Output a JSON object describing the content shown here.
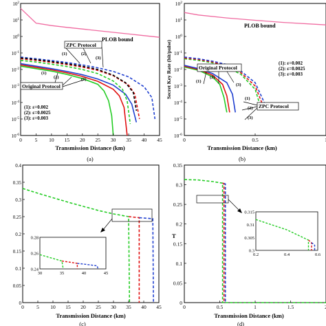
{
  "colors": {
    "plob": "#f06aa0",
    "green": "#22cc22",
    "red": "#e01010",
    "blue": "#1f3fd0",
    "black": "#000000"
  },
  "panels": {
    "a": {
      "caption": "(a)",
      "xlabel": "Transmission Distance (km)",
      "ylabel_partial": "",
      "plob_label": "PLOB bound",
      "zpc_label": "ZPC Protocol",
      "orig_label": "Original Protocol",
      "legend": [
        "(1): ε=0.002",
        "(2): ε=0.0025",
        "(3): ε=0.003"
      ]
    },
    "b": {
      "caption": "(b)",
      "xlabel": "Transmission Distance (km)",
      "ylabel": "Secret Key Rate (bit/pulse)",
      "plob_label": "PLOB bound",
      "zpc_label": "ZPC Protocol",
      "orig_label": "Original Protocol",
      "legend": [
        "(1): ε=0.002",
        "(2): ε=0.0025",
        "(3): ε=0.003"
      ]
    },
    "c": {
      "caption": "(c)",
      "xlabel": "Transmission Distance (km)"
    },
    "d": {
      "caption": "(d)",
      "xlabel": "Transmission Distance (km)",
      "ylabel": "T"
    }
  },
  "chart_data": [
    {
      "id": "a",
      "type": "line",
      "xlabel": "Transmission Distance (km)",
      "xlim": [
        0,
        45
      ],
      "ylim_log10": [
        -6,
        2
      ],
      "yscale": "log",
      "xticks": [
        "0",
        "5",
        "10",
        "15",
        "20",
        "25",
        "30",
        "35",
        "40",
        "45"
      ],
      "yticks": [
        "10^-6",
        "10^-5",
        "10^-4",
        "10^-3",
        "10^-2",
        "10^-1",
        "10^0",
        "10^1",
        "10^2"
      ],
      "series": [
        {
          "name": "PLOB bound",
          "color": "plob",
          "dash": false,
          "x": [
            0,
            5,
            10,
            15,
            20,
            25,
            30,
            35,
            40,
            45
          ],
          "log10y": [
            1.7,
            0.81,
            0.66,
            0.55,
            0.45,
            0.35,
            0.25,
            0.15,
            0.05,
            -0.05
          ]
        },
        {
          "name": "(1)",
          "color": "green",
          "dash": false,
          "x": [
            0,
            5,
            10,
            15,
            20,
            25,
            27,
            28.5,
            29.5,
            30
          ],
          "log10y": [
            -1.8,
            -1.95,
            -2.1,
            -2.3,
            -2.55,
            -2.9,
            -3.3,
            -3.9,
            -4.8,
            -6
          ]
        },
        {
          "name": "(2)",
          "color": "red",
          "dash": false,
          "x": [
            0,
            5,
            10,
            15,
            20,
            25,
            30,
            32,
            33.5,
            34.5
          ],
          "log10y": [
            -1.72,
            -1.87,
            -2.02,
            -2.2,
            -2.42,
            -2.72,
            -3.2,
            -3.6,
            -4.3,
            -6
          ]
        },
        {
          "name": "(3)",
          "color": "blue",
          "dash": false,
          "x": [
            0,
            5,
            10,
            15,
            20,
            25,
            30,
            34,
            36,
            37.5
          ],
          "log10y": [
            -1.65,
            -1.8,
            -1.95,
            -2.12,
            -2.32,
            -2.58,
            -2.95,
            -3.5,
            -4.1,
            -5.2
          ]
        },
        {
          "name": "(1)",
          "color": "green",
          "dash": true,
          "x": [
            0,
            5,
            10,
            15,
            20,
            25,
            30,
            33,
            34.5,
            35.5
          ],
          "log10y": [
            -1.45,
            -1.55,
            -1.68,
            -1.82,
            -2.0,
            -2.25,
            -2.7,
            -3.2,
            -3.9,
            -5.3
          ]
        },
        {
          "name": "(2)",
          "color": "red",
          "dash": true,
          "x": [
            0,
            5,
            10,
            15,
            20,
            25,
            30,
            35,
            37,
            38.5
          ],
          "log10y": [
            -1.35,
            -1.45,
            -1.57,
            -1.7,
            -1.86,
            -2.06,
            -2.38,
            -2.95,
            -3.5,
            -5.0
          ]
        },
        {
          "name": "(3)",
          "color": "blue",
          "dash": true,
          "x": [
            0,
            5,
            10,
            15,
            20,
            25,
            30,
            35,
            40,
            42.5,
            43.5
          ],
          "log10y": [
            -1.25,
            -1.35,
            -1.46,
            -1.58,
            -1.72,
            -1.9,
            -2.12,
            -2.45,
            -3.05,
            -3.7,
            -5.0
          ]
        },
        {
          "name": "",
          "color": "black",
          "dash": true,
          "x": [
            0,
            5,
            10,
            15,
            20,
            25,
            30,
            34,
            36.5,
            37.5
          ],
          "log10y": [
            -1.3,
            -1.4,
            -1.52,
            -1.65,
            -1.8,
            -2.0,
            -2.35,
            -2.8,
            -3.4,
            -4.5
          ]
        }
      ]
    },
    {
      "id": "b",
      "type": "line",
      "xlabel": "Transmission Distance (km)",
      "ylabel": "Secret Key Rate (bit/pulse)",
      "xlim": [
        0,
        1
      ],
      "ylim_log10": [
        -6,
        2
      ],
      "yscale": "log",
      "xticks": [
        "0",
        "0.5",
        "1"
      ],
      "yticks": [
        "10^-6",
        "10^-5",
        "10^-4",
        "10^-3",
        "10^-2",
        "10^-1",
        "10^0",
        "10^1",
        "10^2"
      ],
      "series": [
        {
          "name": "PLOB bound",
          "color": "plob",
          "dash": false,
          "x": [
            0,
            0.1,
            0.3,
            0.5,
            0.7,
            1.0
          ],
          "log10y": [
            1.45,
            1.3,
            1.12,
            0.98,
            0.85,
            0.7
          ]
        },
        {
          "name": "(1)",
          "color": "green",
          "dash": false,
          "x": [
            0,
            0.1,
            0.2,
            0.25,
            0.28,
            0.3
          ],
          "log10y": [
            -1.85,
            -2.05,
            -2.45,
            -2.9,
            -3.7,
            -4.6
          ]
        },
        {
          "name": "(2)",
          "color": "red",
          "dash": false,
          "x": [
            0,
            0.1,
            0.2,
            0.27,
            0.3,
            0.32
          ],
          "log10y": [
            -1.8,
            -2.0,
            -2.35,
            -2.9,
            -3.6,
            -4.6
          ]
        },
        {
          "name": "(3)",
          "color": "blue",
          "dash": false,
          "x": [
            0,
            0.1,
            0.2,
            0.3,
            0.34,
            0.36
          ],
          "log10y": [
            -1.75,
            -1.95,
            -2.25,
            -2.8,
            -3.5,
            -4.6
          ]
        },
        {
          "name": "(1)",
          "color": "green",
          "dash": true,
          "x": [
            0,
            0.1,
            0.2,
            0.3,
            0.4,
            0.5,
            0.54
          ],
          "log10y": [
            -1.35,
            -1.45,
            -1.6,
            -1.85,
            -2.3,
            -3.2,
            -4.3
          ]
        },
        {
          "name": "(2)",
          "color": "red",
          "dash": true,
          "x": [
            0,
            0.1,
            0.2,
            0.3,
            0.4,
            0.5,
            0.56
          ],
          "log10y": [
            -1.3,
            -1.4,
            -1.55,
            -1.78,
            -2.2,
            -3.0,
            -4.3
          ]
        },
        {
          "name": "(3)",
          "color": "blue",
          "dash": true,
          "x": [
            0,
            0.1,
            0.2,
            0.3,
            0.4,
            0.5,
            0.58
          ],
          "log10y": [
            -1.25,
            -1.35,
            -1.5,
            -1.7,
            -2.1,
            -2.8,
            -4.3
          ]
        }
      ]
    },
    {
      "id": "c",
      "type": "line",
      "xlabel": "Transmission Distance (km)",
      "xlim": [
        0,
        45
      ],
      "ylim": [
        0,
        0.4
      ],
      "xticks": [
        "0",
        "5",
        "10",
        "15",
        "20",
        "25",
        "30",
        "35",
        "40",
        "45"
      ],
      "yticks": [
        "0",
        "0.05",
        "0.1",
        "0.15",
        "0.2",
        "0.25",
        "0.3",
        "0.35",
        "0.4"
      ],
      "series": [
        {
          "name": "(1)",
          "color": "green",
          "dash": true,
          "x": [
            0,
            5,
            10,
            15,
            20,
            25,
            30,
            35,
            35,
            35.3
          ],
          "y": [
            0.332,
            0.318,
            0.305,
            0.292,
            0.28,
            0.268,
            0.258,
            0.25,
            0.25,
            0
          ]
        },
        {
          "name": "(2)",
          "color": "red",
          "dash": true,
          "x": [
            35,
            38.5,
            38.5
          ],
          "y": [
            0.25,
            0.247,
            0
          ]
        },
        {
          "name": "(3)",
          "color": "blue",
          "dash": true,
          "x": [
            38.5,
            43,
            43.2
          ],
          "y": [
            0.247,
            0.244,
            0
          ]
        }
      ],
      "inset": {
        "xlim": [
          30,
          45
        ],
        "ylim": [
          0.24,
          0.28
        ],
        "xticks": [
          "30",
          "35",
          "40",
          "45"
        ],
        "yticks": [
          "0.24",
          "0.26",
          "0.28"
        ]
      }
    },
    {
      "id": "d",
      "type": "line",
      "xlabel": "Transmission Distance (km)",
      "ylabel": "T",
      "xlim": [
        0,
        2
      ],
      "ylim": [
        0,
        0.35
      ],
      "xticks": [
        "0",
        "0.5",
        "1",
        "1.5",
        "2"
      ],
      "yticks": [
        "0",
        "0.05",
        "0.1",
        "0.15",
        "0.2",
        "0.25",
        "0.3",
        "0.35"
      ],
      "series": [
        {
          "name": "(1)",
          "color": "green",
          "dash": true,
          "x": [
            0,
            0.2,
            0.4,
            0.54,
            0.54,
            2
          ],
          "y": [
            0.313,
            0.312,
            0.308,
            0.304,
            0,
            0
          ]
        },
        {
          "name": "(2)",
          "color": "red",
          "dash": true,
          "x": [
            0.54,
            0.56,
            0.56
          ],
          "y": [
            0.304,
            0.303,
            0
          ]
        },
        {
          "name": "(3)",
          "color": "blue",
          "dash": true,
          "x": [
            0.56,
            0.58,
            0.58
          ],
          "y": [
            0.303,
            0.302,
            0
          ]
        }
      ],
      "inset": {
        "xlim": [
          0.2,
          0.6
        ],
        "ylim": [
          0.3,
          0.315
        ],
        "xticks": [
          "0.2",
          "0.4",
          "0.6"
        ],
        "yticks": [
          "0.3",
          "0.305",
          "0.31",
          "0.315"
        ]
      }
    }
  ]
}
